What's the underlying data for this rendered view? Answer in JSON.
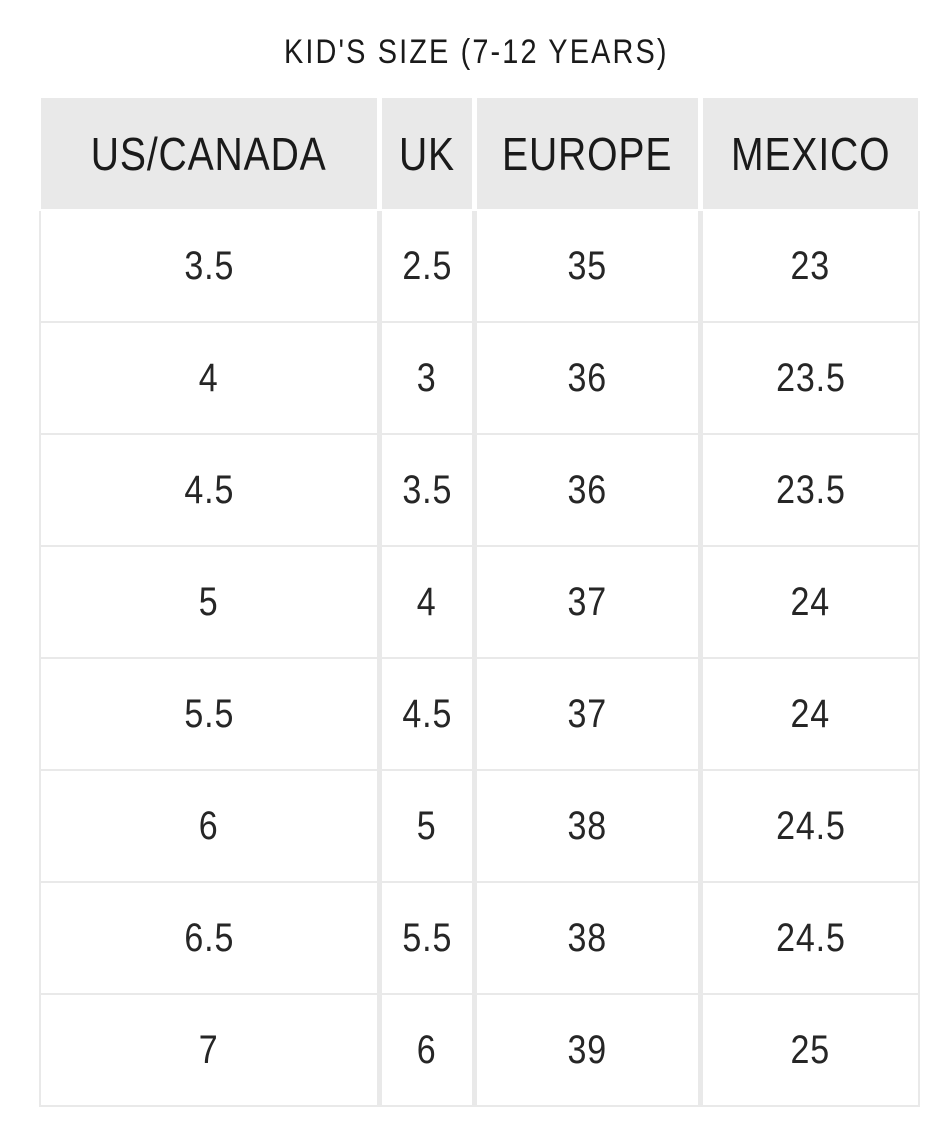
{
  "title": "KID'S SIZE (7-12 YEARS)",
  "columns": [
    "US/CANADA",
    "UK",
    "EUROPE",
    "MEXICO"
  ],
  "rows": [
    [
      "3.5",
      "2.5",
      "35",
      "23"
    ],
    [
      "4",
      "3",
      "36",
      "23.5"
    ],
    [
      "4.5",
      "3.5",
      "36",
      "23.5"
    ],
    [
      "5",
      "4",
      "37",
      "24"
    ],
    [
      "5.5",
      "4.5",
      "37",
      "24"
    ],
    [
      "6",
      "5",
      "38",
      "24.5"
    ],
    [
      "6.5",
      "5.5",
      "38",
      "24.5"
    ],
    [
      "7",
      "6",
      "39",
      "25"
    ]
  ],
  "colors": {
    "page_bg": "#ffffff",
    "header_bg": "#e9e9e9",
    "grid_line": "#e9e9e9",
    "text": "#1f1f1f"
  },
  "chart_data": {
    "type": "table",
    "title": "KID'S SIZE (7-12 YEARS)",
    "columns": [
      "US/CANADA",
      "UK",
      "EUROPE",
      "MEXICO"
    ],
    "rows": [
      [
        "3.5",
        "2.5",
        "35",
        "23"
      ],
      [
        "4",
        "3",
        "36",
        "23.5"
      ],
      [
        "4.5",
        "3.5",
        "36",
        "23.5"
      ],
      [
        "5",
        "4",
        "37",
        "24"
      ],
      [
        "5.5",
        "4.5",
        "37",
        "24"
      ],
      [
        "6",
        "5",
        "38",
        "24.5"
      ],
      [
        "6.5",
        "5.5",
        "38",
        "24.5"
      ],
      [
        "7",
        "6",
        "39",
        "25"
      ]
    ]
  }
}
